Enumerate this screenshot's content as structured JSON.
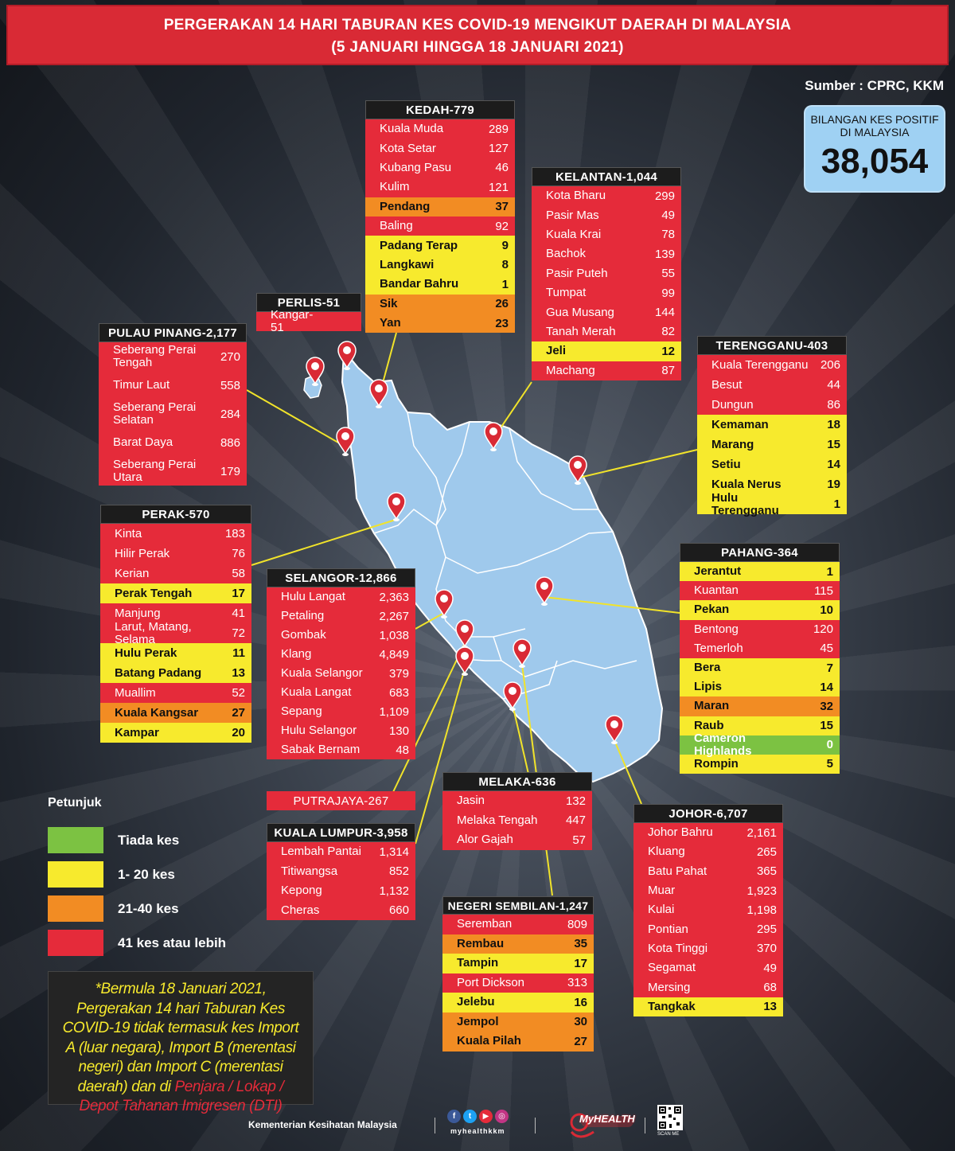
{
  "header": {
    "line1": "PERGERAKAN 14 HARI TABURAN KES COVID-19 MENGIKUT DAERAH DI MALAYSIA",
    "line2": "(5 JANUARI HINGGA 18 JANUARI 2021)"
  },
  "source": "Sumber : CPRC, KKM",
  "total": {
    "label": "BILANGAN KES POSITIF DI MALAYSIA",
    "value": "38,054"
  },
  "colors": {
    "red": "#e52b3a",
    "yellow": "#f7ea2d",
    "orange": "#f28c23",
    "green": "#7cc242",
    "map": "#9fc9ec"
  },
  "states": {
    "kedah": {
      "title": "KEDAH-779",
      "rows": [
        {
          "name": "Kuala Muda",
          "value": "289",
          "level": "red"
        },
        {
          "name": "Kota Setar",
          "value": "127",
          "level": "red"
        },
        {
          "name": "Kubang Pasu",
          "value": "46",
          "level": "red"
        },
        {
          "name": "Kulim",
          "value": "121",
          "level": "red"
        },
        {
          "name": "Pendang",
          "value": "37",
          "level": "orange"
        },
        {
          "name": "Baling",
          "value": "92",
          "level": "red"
        },
        {
          "name": "Padang Terap",
          "value": "9",
          "level": "yellow"
        },
        {
          "name": "Langkawi",
          "value": "8",
          "level": "yellow"
        },
        {
          "name": "Bandar Bahru",
          "value": "1",
          "level": "yellow"
        },
        {
          "name": "Sik",
          "value": "26",
          "level": "orange"
        },
        {
          "name": "Yan",
          "value": "23",
          "level": "orange"
        }
      ]
    },
    "kelantan": {
      "title": "KELANTAN-1,044",
      "rows": [
        {
          "name": "Kota Bharu",
          "value": "299",
          "level": "red"
        },
        {
          "name": "Pasir Mas",
          "value": "49",
          "level": "red"
        },
        {
          "name": "Kuala Krai",
          "value": "78",
          "level": "red"
        },
        {
          "name": "Bachok",
          "value": "139",
          "level": "red"
        },
        {
          "name": "Pasir Puteh",
          "value": "55",
          "level": "red"
        },
        {
          "name": "Tumpat",
          "value": "99",
          "level": "red"
        },
        {
          "name": "Gua Musang",
          "value": "144",
          "level": "red"
        },
        {
          "name": "Tanah Merah",
          "value": "82",
          "level": "red"
        },
        {
          "name": "Jeli",
          "value": "12",
          "level": "yellow"
        },
        {
          "name": "Machang",
          "value": "87",
          "level": "red"
        }
      ]
    },
    "perlis": {
      "title": "PERLIS-51",
      "rows": [
        {
          "name": "Kangar-51",
          "value": "",
          "level": "red"
        }
      ]
    },
    "pulau_pinang": {
      "title": "PULAU PINANG-2,177",
      "rows": [
        {
          "name": "Seberang Perai Tengah",
          "value": "270",
          "level": "red"
        },
        {
          "name": "Timur Laut",
          "value": "558",
          "level": "red"
        },
        {
          "name": "Seberang Perai Selatan",
          "value": "284",
          "level": "red"
        },
        {
          "name": "Barat Daya",
          "value": "886",
          "level": "red"
        },
        {
          "name": "Seberang Perai Utara",
          "value": "179",
          "level": "red"
        }
      ]
    },
    "terengganu": {
      "title": "TERENGGANU-403",
      "rows": [
        {
          "name": "Kuala Terengganu",
          "value": "206",
          "level": "red"
        },
        {
          "name": "Besut",
          "value": "44",
          "level": "red"
        },
        {
          "name": "Dungun",
          "value": "86",
          "level": "red"
        },
        {
          "name": "Kemaman",
          "value": "18",
          "level": "yellow"
        },
        {
          "name": "Marang",
          "value": "15",
          "level": "yellow"
        },
        {
          "name": "Setiu",
          "value": "14",
          "level": "yellow"
        },
        {
          "name": "Kuala Nerus",
          "value": "19",
          "level": "yellow"
        },
        {
          "name": "Hulu Terengganu",
          "value": "1",
          "level": "yellow"
        }
      ]
    },
    "perak": {
      "title": "PERAK-570",
      "rows": [
        {
          "name": "Kinta",
          "value": "183",
          "level": "red"
        },
        {
          "name": "Hilir Perak",
          "value": "76",
          "level": "red"
        },
        {
          "name": "Kerian",
          "value": "58",
          "level": "red"
        },
        {
          "name": "Perak Tengah",
          "value": "17",
          "level": "yellow"
        },
        {
          "name": "Manjung",
          "value": "41",
          "level": "red"
        },
        {
          "name": "Larut, Matang, Selama",
          "value": "72",
          "level": "red"
        },
        {
          "name": "Hulu Perak",
          "value": "11",
          "level": "yellow"
        },
        {
          "name": "Batang Padang",
          "value": "13",
          "level": "yellow"
        },
        {
          "name": "Muallim",
          "value": "52",
          "level": "red"
        },
        {
          "name": "Kuala Kangsar",
          "value": "27",
          "level": "orange"
        },
        {
          "name": "Kampar",
          "value": "20",
          "level": "yellow"
        }
      ]
    },
    "selangor": {
      "title": "SELANGOR-12,866",
      "rows": [
        {
          "name": "Hulu Langat",
          "value": "2,363",
          "level": "red"
        },
        {
          "name": "Petaling",
          "value": "2,267",
          "level": "red"
        },
        {
          "name": "Gombak",
          "value": "1,038",
          "level": "red"
        },
        {
          "name": "Klang",
          "value": "4,849",
          "level": "red"
        },
        {
          "name": "Kuala Selangor",
          "value": "379",
          "level": "red"
        },
        {
          "name": "Kuala Langat",
          "value": "683",
          "level": "red"
        },
        {
          "name": "Sepang",
          "value": "1,109",
          "level": "red"
        },
        {
          "name": "Hulu Selangor",
          "value": "130",
          "level": "red"
        },
        {
          "name": "Sabak Bernam",
          "value": "48",
          "level": "red"
        }
      ]
    },
    "pahang": {
      "title": "PAHANG-364",
      "rows": [
        {
          "name": "Jerantut",
          "value": "1",
          "level": "yellow"
        },
        {
          "name": "Kuantan",
          "value": "115",
          "level": "red"
        },
        {
          "name": "Pekan",
          "value": "10",
          "level": "yellow"
        },
        {
          "name": "Bentong",
          "value": "120",
          "level": "red"
        },
        {
          "name": "Temerloh",
          "value": "45",
          "level": "red"
        },
        {
          "name": "Bera",
          "value": "7",
          "level": "yellow"
        },
        {
          "name": "Lipis",
          "value": "14",
          "level": "yellow"
        },
        {
          "name": "Maran",
          "value": "32",
          "level": "orange"
        },
        {
          "name": "Raub",
          "value": "15",
          "level": "yellow"
        },
        {
          "name": "Cameron Highlands",
          "value": "0",
          "level": "green"
        },
        {
          "name": "Rompin",
          "value": "5",
          "level": "yellow"
        }
      ]
    },
    "putrajaya": {
      "title": "PUTRAJAYA-267",
      "rows": []
    },
    "kuala_lumpur": {
      "title": "KUALA LUMPUR-3,958",
      "rows": [
        {
          "name": "Lembah Pantai",
          "value": "1,314",
          "level": "red"
        },
        {
          "name": "Titiwangsa",
          "value": "852",
          "level": "red"
        },
        {
          "name": "Kepong",
          "value": "1,132",
          "level": "red"
        },
        {
          "name": "Cheras",
          "value": "660",
          "level": "red"
        }
      ]
    },
    "melaka": {
      "title": "MELAKA-636",
      "rows": [
        {
          "name": "Jasin",
          "value": "132",
          "level": "red"
        },
        {
          "name": "Melaka Tengah",
          "value": "447",
          "level": "red"
        },
        {
          "name": "Alor Gajah",
          "value": "57",
          "level": "red"
        }
      ]
    },
    "negeri_sembilan": {
      "title": "NEGERI SEMBILAN-1,247",
      "rows": [
        {
          "name": "Seremban",
          "value": "809",
          "level": "red"
        },
        {
          "name": "Rembau",
          "value": "35",
          "level": "orange"
        },
        {
          "name": "Tampin",
          "value": "17",
          "level": "yellow"
        },
        {
          "name": "Port Dickson",
          "value": "313",
          "level": "red"
        },
        {
          "name": "Jelebu",
          "value": "16",
          "level": "yellow"
        },
        {
          "name": "Jempol",
          "value": "30",
          "level": "orange"
        },
        {
          "name": "Kuala Pilah",
          "value": "27",
          "level": "orange"
        }
      ]
    },
    "johor": {
      "title": "JOHOR-6,707",
      "rows": [
        {
          "name": "Johor Bahru",
          "value": "2,161",
          "level": "red"
        },
        {
          "name": "Kluang",
          "value": "265",
          "level": "red"
        },
        {
          "name": "Batu Pahat",
          "value": "365",
          "level": "red"
        },
        {
          "name": "Muar",
          "value": "1,923",
          "level": "red"
        },
        {
          "name": "Kulai",
          "value": "1,198",
          "level": "red"
        },
        {
          "name": "Pontian",
          "value": "295",
          "level": "red"
        },
        {
          "name": "Kota Tinggi",
          "value": "370",
          "level": "red"
        },
        {
          "name": "Segamat",
          "value": "49",
          "level": "red"
        },
        {
          "name": "Mersing",
          "value": "68",
          "level": "red"
        },
        {
          "name": "Tangkak",
          "value": "13",
          "level": "yellow"
        }
      ]
    }
  },
  "legend": {
    "title": "Petunjuk",
    "items": [
      {
        "label": "Tiada kes",
        "level": "green"
      },
      {
        "label": "1- 20 kes",
        "level": "yellow"
      },
      {
        "label": "21-40 kes",
        "level": "orange"
      },
      {
        "label": "41 kes atau lebih",
        "level": "red"
      }
    ]
  },
  "note": {
    "text_yellow": "*Bermula 18 Januari 2021, Pergerakan 14 hari Taburan Kes COVID-19 tidak termasuk kes Import A (luar negara), Import B (merentasi negeri) dan Import C (merentasi daerah) dan di ",
    "text_red": "Penjara / Lokap / Depot Tahanan Imigresen (DTI)"
  },
  "footer": {
    "ministry": "Kementerian Kesihatan Malaysia",
    "handle": "myhealthkkm",
    "brand": "MyHEALTH",
    "qr_label": "SCAN ME"
  }
}
